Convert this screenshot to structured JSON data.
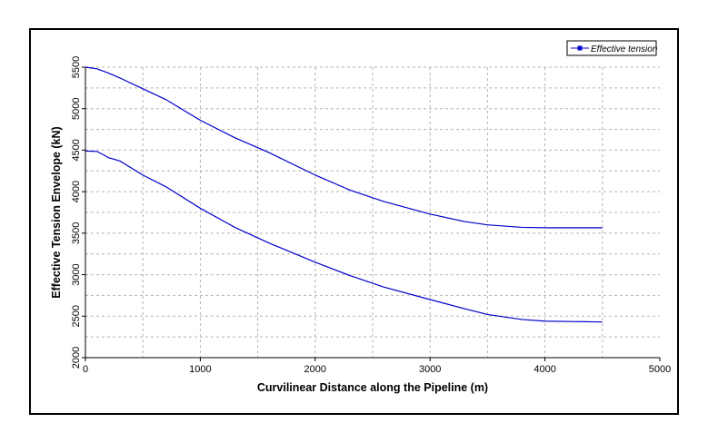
{
  "chart_data": {
    "type": "line",
    "title": "",
    "xlabel": "Curvilinear Distance along the Pipeline (m)",
    "ylabel": "Effective Tension Envelope (kN)",
    "xlim": [
      0,
      5000
    ],
    "ylim": [
      2000,
      5500
    ],
    "xticks": [
      0,
      1000,
      2000,
      3000,
      4000,
      5000
    ],
    "yticks": [
      2000,
      2500,
      3000,
      3500,
      4000,
      4500,
      5000,
      5500
    ],
    "xtick_labels": [
      "0",
      "1000",
      "2000",
      "3000",
      "4000",
      "5000"
    ],
    "ytick_labels": [
      "2000",
      "2500",
      "3000",
      "3500",
      "4000",
      "4500",
      "5000",
      "5500"
    ],
    "grid": true,
    "legend_position": "top-right",
    "legend_label": "Effective tension",
    "series_color": "#0000cc",
    "series": [
      {
        "name": "Effective tension",
        "x": [
          0,
          100,
          200,
          300,
          500,
          700,
          1000,
          1300,
          1600,
          2000,
          2300,
          2600,
          3000,
          3300,
          3500,
          3800,
          4000,
          4500
        ],
        "y": [
          5500,
          5480,
          5430,
          5370,
          5240,
          5110,
          4860,
          4650,
          4470,
          4200,
          4020,
          3880,
          3730,
          3640,
          3600,
          3570,
          3565,
          3565
        ]
      },
      {
        "name": "Effective tension",
        "x": [
          0,
          100,
          150,
          200,
          300,
          500,
          700,
          1000,
          1300,
          1600,
          2000,
          2300,
          2600,
          3000,
          3300,
          3500,
          3800,
          4000,
          4500
        ],
        "y": [
          4490,
          4485,
          4450,
          4410,
          4370,
          4200,
          4060,
          3800,
          3570,
          3380,
          3150,
          2990,
          2850,
          2700,
          2590,
          2520,
          2460,
          2440,
          2430
        ]
      }
    ]
  }
}
